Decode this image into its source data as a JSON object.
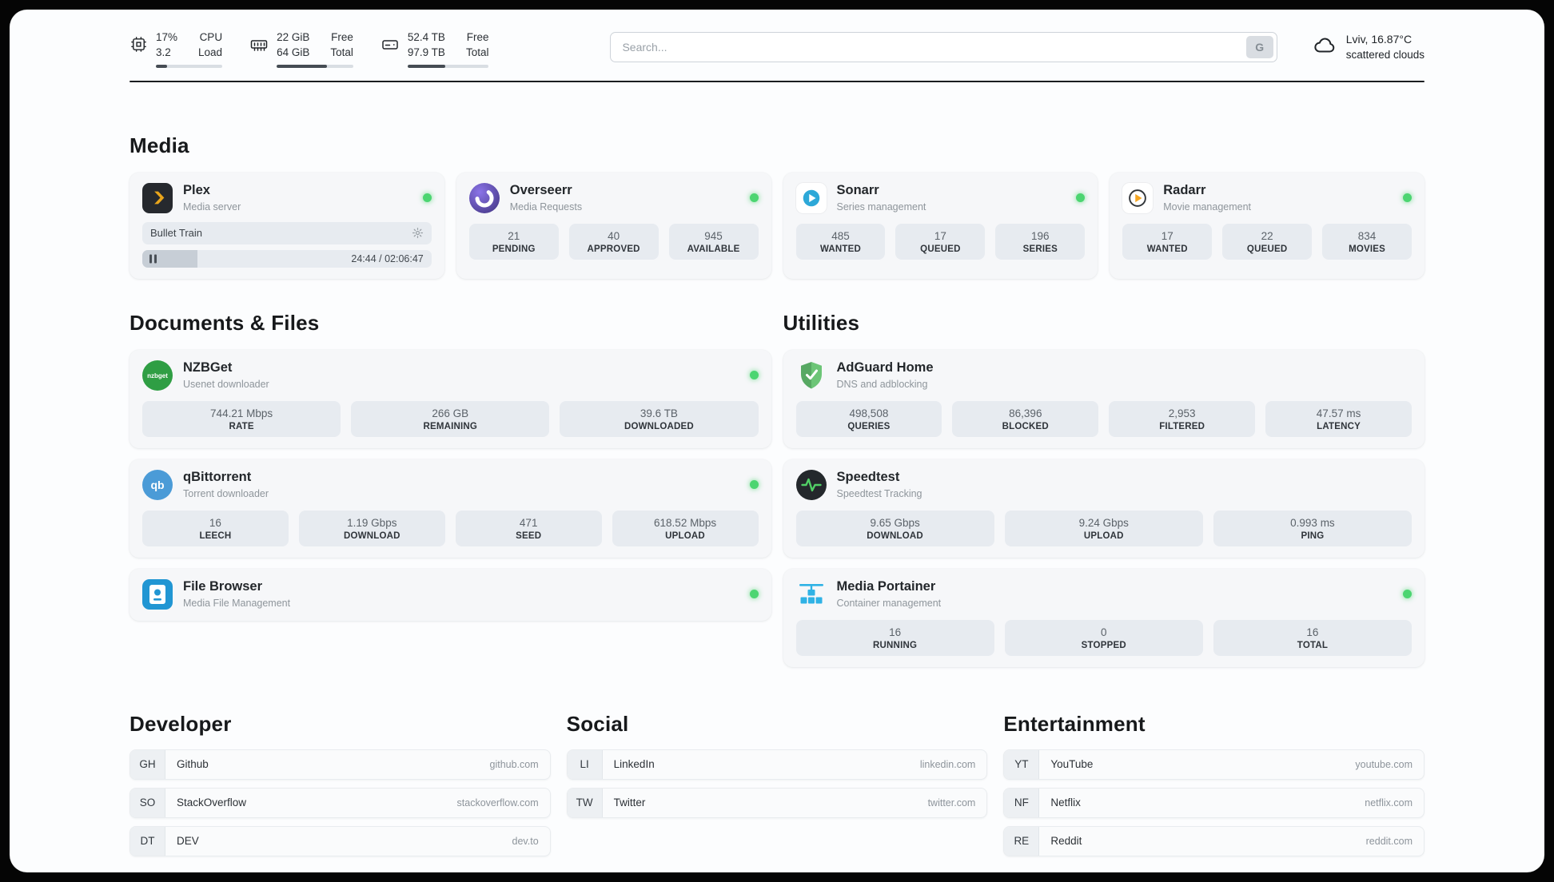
{
  "colors": {
    "status_green": "#4cd571",
    "plex_yellow": "#e9a51b",
    "adguard_green": "#67b279",
    "portainer_blue": "#2fb2e5",
    "speedtest_green": "#51cf66",
    "sonarr_blue": "#2da8d8",
    "radarr_orange": "#f5a623"
  },
  "topbar": {
    "cpu": {
      "usage": "17%",
      "load": "3.2",
      "label_top": "CPU",
      "label_bottom": "Load",
      "fill_percent": 17
    },
    "ram": {
      "free": "22 GiB",
      "total": "64 GiB",
      "label_top": "Free",
      "label_bottom": "Total",
      "fill_percent": 66
    },
    "disk": {
      "free": "52.4 TB",
      "total": "97.9 TB",
      "label_top": "Free",
      "label_bottom": "Total",
      "fill_percent": 46
    },
    "search": {
      "placeholder": "Search...",
      "engine_badge": "G"
    },
    "weather": {
      "location": "Lviv, 16.87°C",
      "condition": "scattered clouds"
    }
  },
  "media": {
    "heading": "Media",
    "plex": {
      "title": "Plex",
      "subtitle": "Media server",
      "now_playing": "Bullet Train",
      "time": "24:44 / 02:06:47",
      "progress_percent": 19
    },
    "overseerr": {
      "title": "Overseerr",
      "subtitle": "Media Requests",
      "stats": [
        {
          "value": "21",
          "label": "PENDING"
        },
        {
          "value": "40",
          "label": "APPROVED"
        },
        {
          "value": "945",
          "label": "AVAILABLE"
        }
      ]
    },
    "sonarr": {
      "title": "Sonarr",
      "subtitle": "Series management",
      "stats": [
        {
          "value": "485",
          "label": "WANTED"
        },
        {
          "value": "17",
          "label": "QUEUED"
        },
        {
          "value": "196",
          "label": "SERIES"
        }
      ]
    },
    "radarr": {
      "title": "Radarr",
      "subtitle": "Movie management",
      "stats": [
        {
          "value": "17",
          "label": "WANTED"
        },
        {
          "value": "22",
          "label": "QUEUED"
        },
        {
          "value": "834",
          "label": "MOVIES"
        }
      ]
    }
  },
  "documents": {
    "heading": "Documents & Files",
    "nzbget": {
      "title": "NZBGet",
      "subtitle": "Usenet downloader",
      "stats": [
        {
          "value": "744.21 Mbps",
          "label": "RATE"
        },
        {
          "value": "266 GB",
          "label": "REMAINING"
        },
        {
          "value": "39.6 TB",
          "label": "DOWNLOADED"
        }
      ]
    },
    "qbittorrent": {
      "title": "qBittorrent",
      "subtitle": "Torrent downloader",
      "stats": [
        {
          "value": "16",
          "label": "LEECH"
        },
        {
          "value": "1.19 Gbps",
          "label": "DOWNLOAD"
        },
        {
          "value": "471",
          "label": "SEED"
        },
        {
          "value": "618.52 Mbps",
          "label": "UPLOAD"
        }
      ]
    },
    "filebrowser": {
      "title": "File Browser",
      "subtitle": "Media File Management"
    }
  },
  "utilities": {
    "heading": "Utilities",
    "adguard": {
      "title": "AdGuard Home",
      "subtitle": "DNS and adblocking",
      "stats": [
        {
          "value": "498,508",
          "label": "QUERIES"
        },
        {
          "value": "86,396",
          "label": "BLOCKED"
        },
        {
          "value": "2,953",
          "label": "FILTERED"
        },
        {
          "value": "47.57 ms",
          "label": "LATENCY"
        }
      ]
    },
    "speedtest": {
      "title": "Speedtest",
      "subtitle": "Speedtest Tracking",
      "stats": [
        {
          "value": "9.65 Gbps",
          "label": "DOWNLOAD"
        },
        {
          "value": "9.24 Gbps",
          "label": "UPLOAD"
        },
        {
          "value": "0.993 ms",
          "label": "PING"
        }
      ]
    },
    "portainer": {
      "title": "Media Portainer",
      "subtitle": "Container management",
      "stats": [
        {
          "value": "16",
          "label": "RUNNING"
        },
        {
          "value": "0",
          "label": "STOPPED"
        },
        {
          "value": "16",
          "label": "TOTAL"
        }
      ]
    }
  },
  "bookmarks": {
    "developer": {
      "heading": "Developer",
      "items": [
        {
          "abbr": "GH",
          "name": "Github",
          "url": "github.com"
        },
        {
          "abbr": "SO",
          "name": "StackOverflow",
          "url": "stackoverflow.com"
        },
        {
          "abbr": "DT",
          "name": "DEV",
          "url": "dev.to"
        }
      ]
    },
    "social": {
      "heading": "Social",
      "items": [
        {
          "abbr": "LI",
          "name": "LinkedIn",
          "url": "linkedin.com"
        },
        {
          "abbr": "TW",
          "name": "Twitter",
          "url": "twitter.com"
        }
      ]
    },
    "entertainment": {
      "heading": "Entertainment",
      "items": [
        {
          "abbr": "YT",
          "name": "YouTube",
          "url": "youtube.com"
        },
        {
          "abbr": "NF",
          "name": "Netflix",
          "url": "netflix.com"
        },
        {
          "abbr": "RE",
          "name": "Reddit",
          "url": "reddit.com"
        }
      ]
    }
  }
}
